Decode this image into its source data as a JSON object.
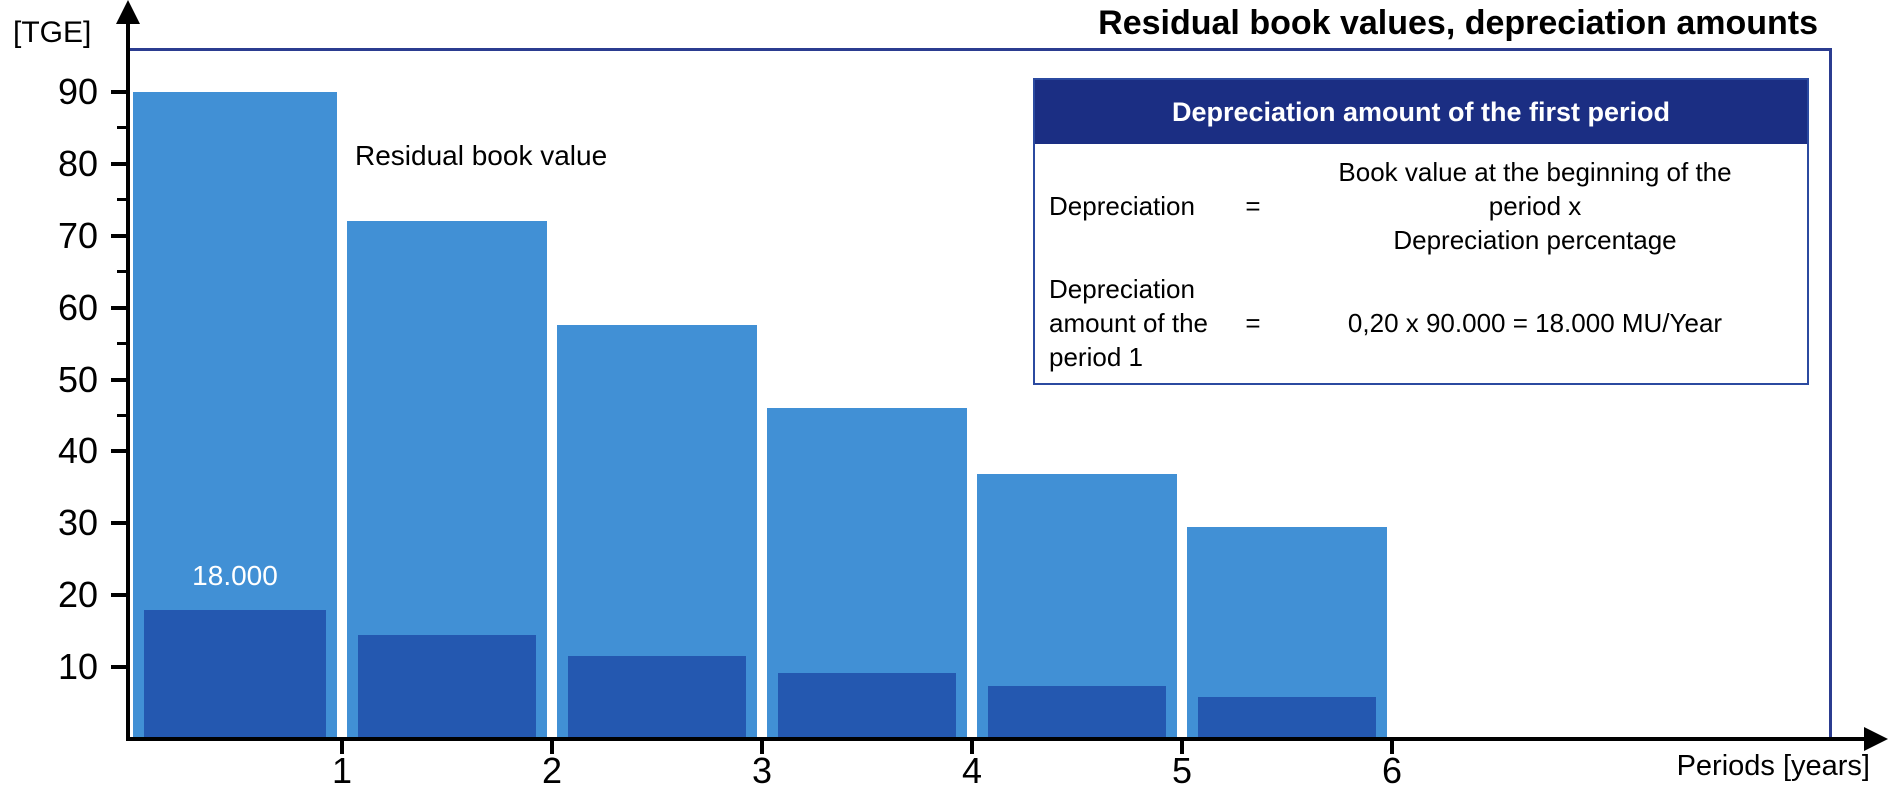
{
  "page": {
    "title": "Residual book values, depreciation amounts"
  },
  "axes": {
    "y_unit_label": "[TGE]",
    "x_label": "Periods [years]"
  },
  "labels": {
    "residual_series": "Residual book value",
    "first_depreciation_value": "18.000"
  },
  "colors": {
    "residual_bar": "#4190D5",
    "depreciation_bar": "#2458B0",
    "infobox_header_bg": "#1B2E83",
    "infobox_border": "#2B4AA0",
    "plot_border": "#2B3C90",
    "axis": "#000000"
  },
  "chart_data": {
    "type": "bar",
    "title": "Residual book values, depreciation amounts",
    "xlabel": "Periods [years]",
    "ylabel": "[TGE]",
    "categories": [
      1,
      2,
      3,
      4,
      5,
      6
    ],
    "series": [
      {
        "name": "Residual book value",
        "color": "#4190D5",
        "values": [
          90,
          72,
          57.6,
          46.08,
          36.86,
          29.49
        ]
      },
      {
        "name": "Depreciation amount",
        "color": "#2458B0",
        "values": [
          18,
          14.4,
          11.52,
          9.22,
          7.37,
          5.9
        ]
      }
    ],
    "ylim": [
      0,
      96
    ],
    "y_major_ticks": [
      10,
      20,
      30,
      40,
      50,
      60,
      70,
      80,
      90
    ],
    "y_minor_ticks": [
      45,
      55,
      65,
      75,
      85
    ],
    "grid": false,
    "legend_position": "none",
    "annotations": [
      {
        "text": "18.000",
        "series": "Depreciation amount",
        "category": 1,
        "color": "#FFFFFF"
      }
    ]
  },
  "info_box": {
    "header": "Depreciation amount of the first period",
    "rows": [
      {
        "label": "Depreciation",
        "operator": "=",
        "value": "Book value at the beginning of the\nperiod x\nDepreciation percentage"
      },
      {
        "label": "Depreciation\namount of the\nperiod 1",
        "operator": "=",
        "value": "0,20 x 90.000 = 18.000 MU/Year"
      }
    ]
  }
}
